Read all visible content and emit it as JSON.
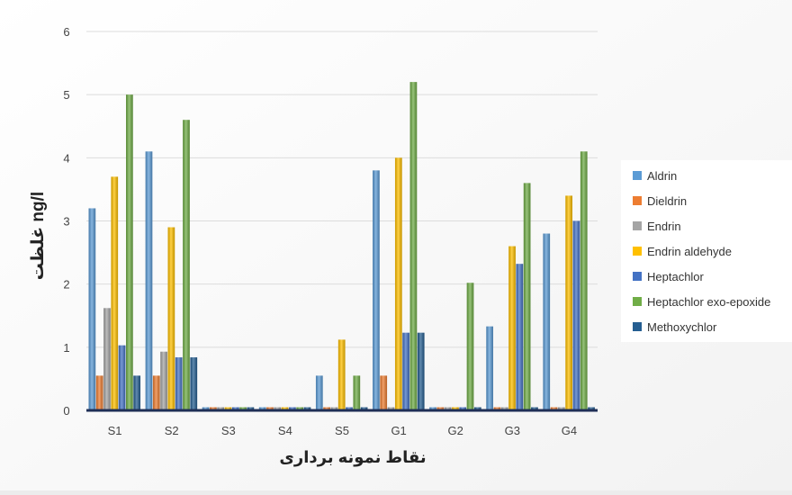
{
  "chart_data": {
    "type": "bar",
    "ylabel": "غلظت ng/l",
    "xlabel": "نقاط نمونه برداری",
    "ylim": [
      0,
      6
    ],
    "yticks": [
      0,
      1,
      2,
      3,
      4,
      5,
      6
    ],
    "grid": true,
    "legend_position": "right",
    "categories": [
      "S1",
      "S2",
      "S3",
      "S4",
      "S5",
      "G1",
      "G2",
      "G3",
      "G4"
    ],
    "series": [
      {
        "name": "Aldrin",
        "color": "#5b9bd5",
        "values": [
          3.2,
          4.1,
          0.05,
          0.05,
          0.55,
          3.8,
          0.05,
          1.33,
          2.8
        ]
      },
      {
        "name": "Dieldrin",
        "color": "#ed7d31",
        "values": [
          0.55,
          0.55,
          0.05,
          0.05,
          0.05,
          0.55,
          0.05,
          0.05,
          0.05
        ]
      },
      {
        "name": "Endrin",
        "color": "#a5a5a5",
        "values": [
          1.62,
          0.93,
          0.05,
          0.05,
          0.05,
          0.05,
          0.05,
          0.05,
          0.05
        ]
      },
      {
        "name": "Endrin aldehyde",
        "color": "#ffc000",
        "values": [
          3.7,
          2.9,
          0.05,
          0.05,
          1.12,
          4.0,
          0.05,
          2.6,
          3.4
        ]
      },
      {
        "name": "Heptachlor",
        "color": "#4472c4",
        "values": [
          1.03,
          0.84,
          0.05,
          0.05,
          0.05,
          1.23,
          0.05,
          2.32,
          3.0
        ]
      },
      {
        "name": "Heptachlor exo-epoxide",
        "color": "#70ad47",
        "values": [
          5.0,
          4.6,
          0.05,
          0.05,
          0.55,
          5.2,
          2.02,
          3.6,
          4.1
        ]
      },
      {
        "name": "Methoxychlor",
        "color": "#255e91",
        "values": [
          0.55,
          0.84,
          0.05,
          0.05,
          0.05,
          1.23,
          0.05,
          0.05,
          0.05
        ]
      }
    ]
  }
}
